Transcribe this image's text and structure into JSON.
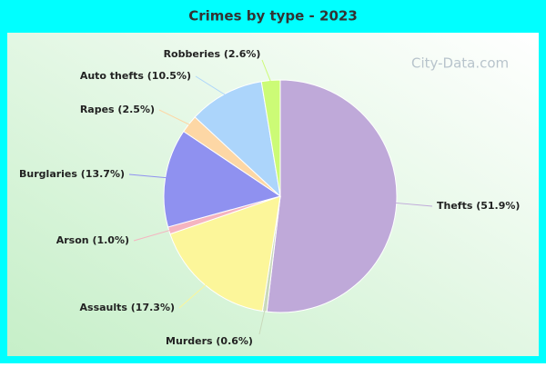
{
  "chart_data": {
    "type": "pie",
    "title": "Crimes by type - 2023",
    "watermark": "City-Data.com",
    "categories": [
      "Thefts",
      "Murders",
      "Assaults",
      "Arson",
      "Burglaries",
      "Rapes",
      "Auto thefts",
      "Robberies"
    ],
    "values": [
      51.9,
      0.6,
      17.3,
      1.0,
      13.7,
      2.5,
      10.5,
      2.6
    ],
    "value_labels": [
      "Thefts (51.9%)",
      "Murders (0.6%)",
      "Assaults (17.3%)",
      "Arson (1.0%)",
      "Burglaries (13.7%)",
      "Rapes (2.5%)",
      "Auto thefts (10.5%)",
      "Robberies (2.6%)"
    ],
    "colors": [
      "#bfa9d9",
      "#c9d9bb",
      "#fcf69a",
      "#f5b4c0",
      "#8f91f0",
      "#fdd7a5",
      "#acd5fb",
      "#ccfb76"
    ]
  }
}
